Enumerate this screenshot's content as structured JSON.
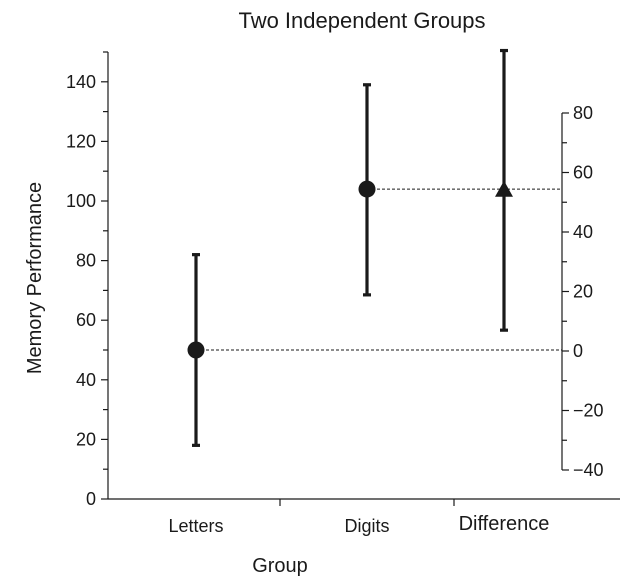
{
  "chart_data": {
    "type": "scatter",
    "title": "Two Independent Groups",
    "xlabel": "Group",
    "ylabel": "Memory Performance",
    "categories": [
      "Letters",
      "Digits",
      "Difference"
    ],
    "left_axis": {
      "ylim": [
        0,
        150
      ],
      "ticks": [
        0,
        20,
        40,
        60,
        80,
        100,
        120,
        140
      ]
    },
    "right_axis": {
      "ylim": [
        -40,
        80
      ],
      "ticks": [
        -40,
        -20,
        0,
        20,
        40,
        60,
        80
      ],
      "tick_labels": [
        "−40",
        "−20",
        "0",
        "20",
        "40",
        "60",
        "80"
      ]
    },
    "series": [
      {
        "axis": "left",
        "marker": "circle",
        "points": [
          {
            "category": "Letters",
            "y": 50,
            "ci_low": 18,
            "ci_high": 82
          },
          {
            "category": "Digits",
            "y": 104,
            "ci_low": 68.5,
            "ci_high": 139
          }
        ]
      },
      {
        "axis": "right",
        "marker": "triangle",
        "points": [
          {
            "category": "Difference",
            "y": 54,
            "ci_low": 7,
            "ci_high": 101
          }
        ]
      }
    ],
    "reference_lines": [
      {
        "from_category": "Letters",
        "to_category": "Difference",
        "left_value": 50,
        "right_value": 0
      },
      {
        "from_category": "Digits",
        "to_category": "Difference",
        "left_value": 104,
        "right_value": 54
      }
    ],
    "grid": false,
    "legend": "none"
  }
}
